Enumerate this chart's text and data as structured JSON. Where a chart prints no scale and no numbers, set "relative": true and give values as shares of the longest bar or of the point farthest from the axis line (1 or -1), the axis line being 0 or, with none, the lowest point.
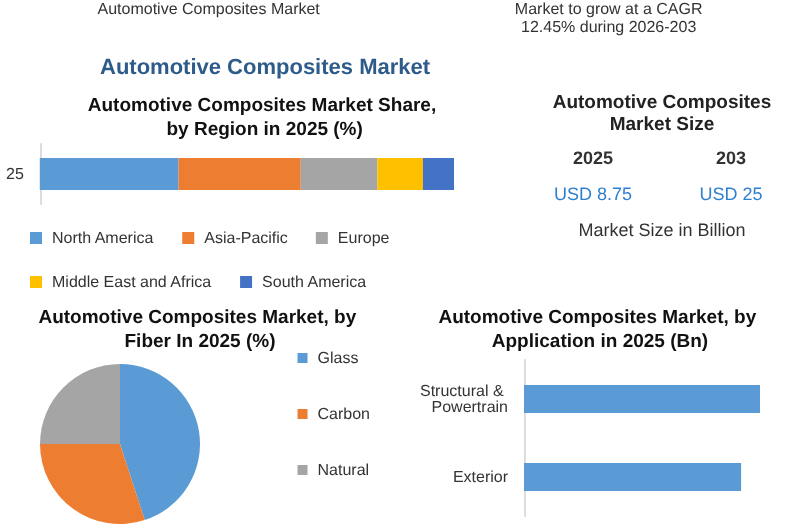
{
  "chart_data": [
    {
      "type": "other",
      "title": "Automotive Composites Market",
      "annotations": [
        "Automotive Composites Market",
        "Market to grow at a CAGR",
        "12.45% during 2026-203"
      ]
    },
    {
      "type": "bar",
      "title": "Automotive Composites Market Share, by Region in 2025 (%)",
      "orientation": "horizontal",
      "stacked": true,
      "relative": true,
      "categories": [
        "25"
      ],
      "legend": "bottom",
      "series": [
        {
          "name": "North America",
          "color": "#5b9bd5",
          "values": [
            0.335
          ]
        },
        {
          "name": "Asia-Pacific",
          "color": "#ed7d31",
          "values": [
            0.295
          ]
        },
        {
          "name": "Europe",
          "color": "#a5a5a5",
          "values": [
            0.185
          ]
        },
        {
          "name": "Middle East and Africa",
          "color": "#ffc000",
          "values": [
            0.11
          ]
        },
        {
          "name": "South America",
          "color": "#4472c4",
          "values": [
            0.075
          ]
        }
      ]
    },
    {
      "type": "other",
      "title": "Automotive Composites Market Size",
      "annotations": [
        "2025",
        "203",
        "USD 8.75",
        "USD 25",
        "Market Size in Billion"
      ]
    },
    {
      "type": "pie",
      "title": "Automotive Composites Market, by Fiber In 2025 (%)",
      "categories": [
        "Glass",
        "Carbon",
        "Natural"
      ],
      "values": [
        45,
        30,
        25
      ],
      "colors": [
        "#5b9bd5",
        "#ed7d31",
        "#a5a5a5"
      ],
      "legend": "right"
    },
    {
      "type": "bar",
      "title": "Automotive Composites Market, by Application in 2025 (Bn)",
      "orientation": "horizontal",
      "relative": true,
      "categories": [
        "Structural & Powertrain",
        "Exterior"
      ],
      "values": [
        1,
        0.92
      ],
      "color": "#5b9bd5"
    }
  ]
}
